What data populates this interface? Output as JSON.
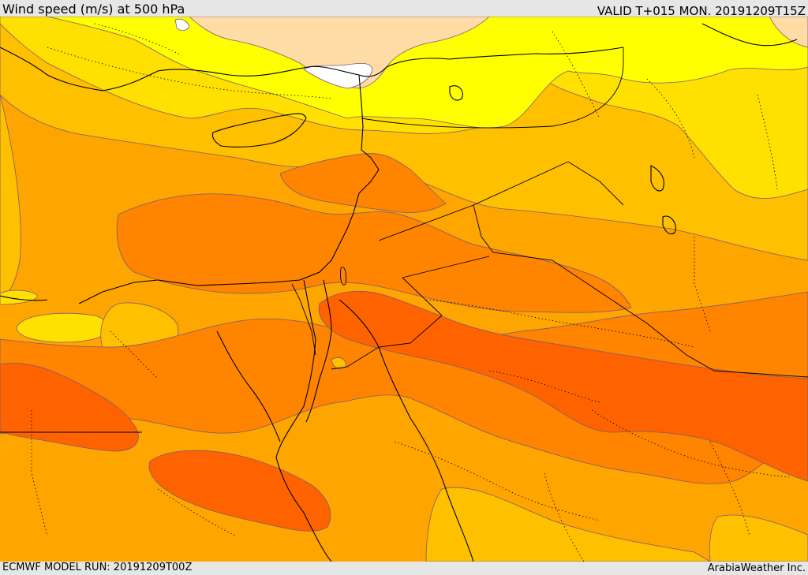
{
  "header": {
    "title": "Wind speed (m/s) at 500 hPa",
    "valid": "VALID T+015 MON. 20191209T15Z"
  },
  "footer": {
    "model_run": "ECMWF MODEL RUN: 20191209T00Z",
    "brand": "ArabiaWeather Inc."
  },
  "colors": {
    "band_pale": "#ffdca6",
    "band_white": "#ffffff",
    "band_yellow": "#ffff00",
    "band_gold": "#ffe000",
    "band_amber": "#ffc000",
    "band_orange_light": "#ffa500",
    "band_orange": "#ff8400",
    "band_orange_dark": "#ff6300",
    "contour_line": "#7a5a7a",
    "coastline": "#000000"
  }
}
